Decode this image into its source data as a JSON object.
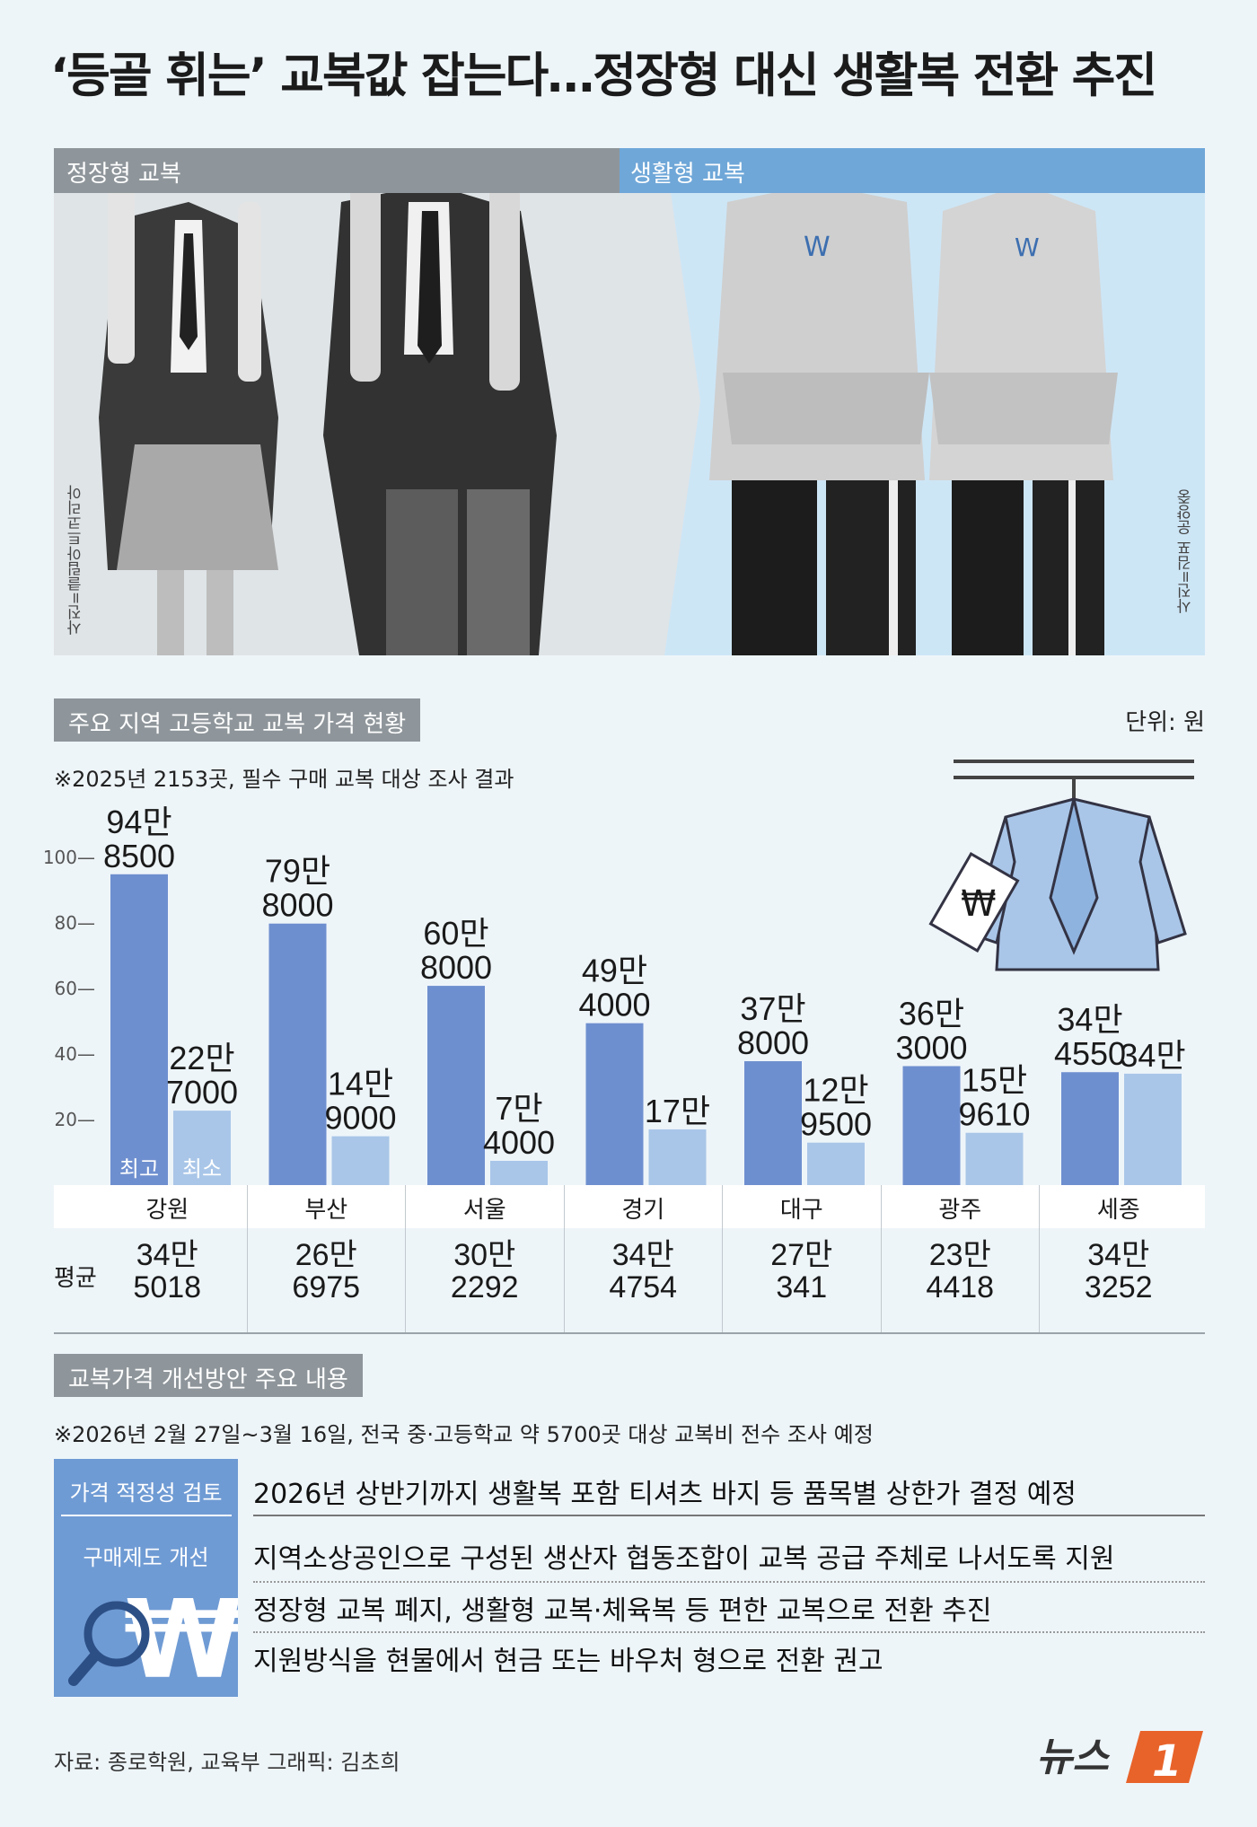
{
  "title": "‘등골 휘는’ 교복값 잡는다…정장형 대신 생활복 전환 추진",
  "photo": {
    "left_label": "정장형 교복",
    "right_label": "생활형 교복",
    "left_credit": "사진=클립아트코리아",
    "right_credit": "사진=김포 운양중"
  },
  "chart_section": {
    "header": "주요 지역 고등학교 교복 가격 현황",
    "unit": "단위: 원",
    "note": "※2025년 2153곳, 필수 구매 교복 대상 조사 결과",
    "avg_label": "평균",
    "max_tag": "최고",
    "min_tag": "최소"
  },
  "chart_data": {
    "type": "bar",
    "categories": [
      "강원",
      "부산",
      "서울",
      "경기",
      "대구",
      "광주",
      "세종"
    ],
    "series": [
      {
        "name": "최고",
        "values": [
          948500,
          798000,
          608000,
          494000,
          378000,
          363000,
          344550
        ],
        "color": "#6e8fcf"
      },
      {
        "name": "최소",
        "values": [
          227000,
          149000,
          74000,
          170000,
          129500,
          159610,
          340000
        ],
        "color": "#a9c6e8"
      }
    ],
    "max_labels": [
      [
        "94만",
        "8500"
      ],
      [
        "79만",
        "8000"
      ],
      [
        "60만",
        "8000"
      ],
      [
        "49만",
        "4000"
      ],
      [
        "37만",
        "8000"
      ],
      [
        "36만",
        "3000"
      ],
      [
        "34만",
        "4550"
      ]
    ],
    "min_labels": [
      [
        "22만",
        "7000"
      ],
      [
        "14만",
        "9000"
      ],
      [
        "7만",
        "4000"
      ],
      [
        "17만",
        ""
      ],
      [
        "12만",
        "9500"
      ],
      [
        "15만",
        "9610"
      ],
      [
        "34만",
        ""
      ]
    ],
    "average": [
      345018,
      266975,
      302292,
      344754,
      270341,
      234418,
      343252
    ],
    "avg_labels": [
      [
        "34만",
        "5018"
      ],
      [
        "26만",
        "6975"
      ],
      [
        "30만",
        "2292"
      ],
      [
        "34만",
        "4754"
      ],
      [
        "27만",
        "341"
      ],
      [
        "23만",
        "4418"
      ],
      [
        "34만",
        "3252"
      ]
    ],
    "yticks": [
      "100",
      "80",
      "60",
      "40",
      "20"
    ],
    "ylim": [
      0,
      1000000
    ]
  },
  "measures": {
    "header": "교복가격 개선방안 주요 내용",
    "note": "※2026년 2월 27일~3월 16일, 전국 중·고등학교 약 5700곳 대상 교복비 전수 조사 예정",
    "tag1": "가격 적정성 검토",
    "tag2": "구매제도 개선",
    "items": [
      "2026년 상반기까지 생활복 포함 티셔츠 바지 등 품목별 상한가 결정 예정",
      "지역소상공인으로 구성된 생산자 협동조합이 교복 공급 주체로 나서도록 지원",
      "정장형 교복 폐지, 생활형 교복·체육복 등 편한 교복으로 전환 추진",
      "지원방식을 현물에서 현금 또는 바우처 형으로 전환 권고"
    ],
    "won_icon": "won-search-icon"
  },
  "footer": {
    "source": "자료: 종로학원, 교육부   그래픽: 김초희",
    "logo_text": "뉴스",
    "logo_num": "1"
  }
}
